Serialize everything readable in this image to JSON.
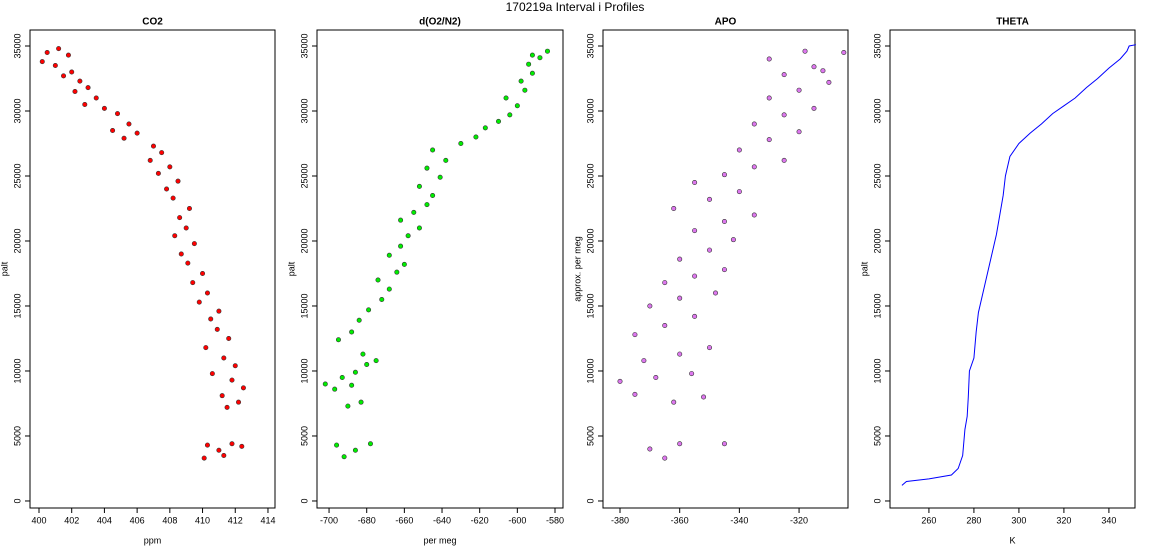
{
  "title": "170219a   Interval i Profiles",
  "chart_data": [
    {
      "type": "scatter",
      "title": "CO2",
      "xlabel": "ppm",
      "ylabel": "palt",
      "color": "#ff0000",
      "xlim": [
        399.45,
        414.43
      ],
      "ylim": [
        -540,
        36230
      ],
      "xticks": [
        400,
        402,
        404,
        406,
        408,
        410,
        412,
        414
      ],
      "yticks": [
        0,
        5000,
        10000,
        15000,
        20000,
        25000,
        30000,
        35000
      ],
      "x": [
        400.5,
        401.2,
        401.8,
        400.2,
        401,
        402,
        401.5,
        402.5,
        403,
        402.2,
        403.5,
        402.8,
        404,
        404.8,
        405.5,
        404.5,
        406,
        405.2,
        407,
        407.5,
        406.8,
        408,
        407.3,
        408.5,
        407.8,
        408.2,
        409.2,
        408.6,
        409,
        408.3,
        409.5,
        408.7,
        409.1,
        410,
        409.4,
        410.3,
        409.8,
        411,
        410.5,
        410.9,
        411.6,
        410.2,
        411.3,
        412,
        410.6,
        411.8,
        412.5,
        411.2,
        412.2,
        411.5,
        410.3,
        411,
        411.8,
        412.4,
        410.1,
        411.3
      ],
      "values": [
        34500,
        34800,
        34300,
        33800,
        33500,
        33000,
        32700,
        32300,
        31800,
        31500,
        31000,
        30500,
        30200,
        29800,
        29000,
        28500,
        28300,
        27900,
        27300,
        26800,
        26200,
        25700,
        25200,
        24600,
        24000,
        23300,
        22500,
        21800,
        21000,
        20400,
        19800,
        19000,
        18300,
        17500,
        16800,
        16000,
        15300,
        14600,
        14000,
        13200,
        12500,
        11800,
        11000,
        10400,
        9800,
        9300,
        8700,
        8100,
        7600,
        7200,
        4300,
        3900,
        4400,
        4200,
        3300,
        3500
      ]
    },
    {
      "type": "scatter",
      "title": "d(O2/N2)",
      "xlabel": "per meg",
      "ylabel": "palt",
      "color": "#00ee00",
      "xlim": [
        -706.4,
        -575.75
      ],
      "ylim": [
        -540,
        36230
      ],
      "xticks": [
        -700,
        -680,
        -660,
        -640,
        -620,
        -600,
        -580
      ],
      "yticks": [
        0,
        5000,
        10000,
        15000,
        20000,
        25000,
        30000,
        35000
      ],
      "x": [
        -692,
        -696,
        -686,
        -678,
        -690,
        -683,
        -697,
        -688,
        -702,
        -693,
        -686,
        -680,
        -675,
        -682,
        -695,
        -688,
        -684,
        -679,
        -672,
        -668,
        -674,
        -664,
        -660,
        -668,
        -662,
        -658,
        -652,
        -662,
        -655,
        -648,
        -645,
        -652,
        -641,
        -648,
        -638,
        -645,
        -630,
        -622,
        -617,
        -610,
        -604,
        -600,
        -606,
        -596,
        -598,
        -592,
        -594,
        -588,
        -584,
        -592
      ],
      "values": [
        3400,
        4300,
        3900,
        4400,
        7300,
        7600,
        8600,
        8900,
        9000,
        9500,
        9900,
        10500,
        10800,
        11300,
        12400,
        13000,
        13900,
        14700,
        15500,
        16300,
        17000,
        17600,
        18200,
        18900,
        19600,
        20400,
        21000,
        21600,
        22200,
        22800,
        23500,
        24200,
        24900,
        25600,
        26200,
        27000,
        27500,
        28000,
        28700,
        29200,
        29700,
        30400,
        31000,
        31600,
        32300,
        32900,
        33600,
        34100,
        34600,
        34300
      ]
    },
    {
      "type": "scatter",
      "title": "APO",
      "ylabel": "approx. per meg",
      "color": "#dd77ee",
      "xlim": [
        -385.7,
        -303.6
      ],
      "ylim": [
        -540,
        36230
      ],
      "xticks": [
        -380,
        -360,
        -340,
        -320
      ],
      "yticks": [
        0,
        5000,
        10000,
        15000,
        20000,
        25000,
        30000,
        35000
      ],
      "x": [
        -365,
        -370,
        -360,
        -345,
        -375,
        -362,
        -352,
        -380,
        -368,
        -356,
        -372,
        -360,
        -350,
        -375,
        -365,
        -355,
        -370,
        -360,
        -348,
        -365,
        -355,
        -345,
        -360,
        -350,
        -342,
        -355,
        -345,
        -335,
        -362,
        -350,
        -340,
        -355,
        -345,
        -335,
        -325,
        -340,
        -330,
        -320,
        -335,
        -325,
        -315,
        -330,
        -320,
        -310,
        -325,
        -315,
        -330,
        -318,
        -305,
        -312
      ],
      "values": [
        3300,
        4000,
        4400,
        4400,
        8200,
        7600,
        8000,
        9200,
        9500,
        9800,
        10800,
        11300,
        11800,
        12800,
        13500,
        14200,
        15000,
        15600,
        16000,
        16800,
        17300,
        17800,
        18600,
        19300,
        20100,
        20800,
        21500,
        22000,
        22500,
        23200,
        23800,
        24500,
        25100,
        25700,
        26200,
        27000,
        27800,
        28400,
        29000,
        29700,
        30200,
        31000,
        31600,
        32200,
        32800,
        33400,
        34000,
        34600,
        34500,
        33100
      ]
    },
    {
      "type": "line",
      "title": "THETA",
      "xlabel": "K",
      "ylabel": "palt",
      "color": "#0000ff",
      "xlim": [
        242.7,
        351.6
      ],
      "ylim": [
        -540,
        36230
      ],
      "xticks": [
        260,
        280,
        300,
        320,
        340
      ],
      "yticks": [
        0,
        5000,
        10000,
        15000,
        20000,
        25000,
        30000,
        35000
      ],
      "x": [
        248,
        250,
        260,
        270,
        273,
        275,
        276,
        277,
        277.5,
        278,
        280,
        281,
        282,
        284,
        286,
        288,
        290,
        291.5,
        293,
        294,
        296,
        300,
        305,
        310,
        315,
        320,
        325,
        330,
        335,
        340,
        345,
        348,
        349,
        352
      ],
      "values": [
        1200,
        1500,
        1700,
        2000,
        2500,
        3500,
        5500,
        6500,
        8000,
        10000,
        11000,
        13000,
        14500,
        16000,
        17500,
        19000,
        20500,
        22000,
        23500,
        25000,
        26500,
        27500,
        28300,
        29000,
        29800,
        30400,
        31000,
        31800,
        32500,
        33300,
        34000,
        34600,
        35000,
        35100
      ]
    }
  ]
}
